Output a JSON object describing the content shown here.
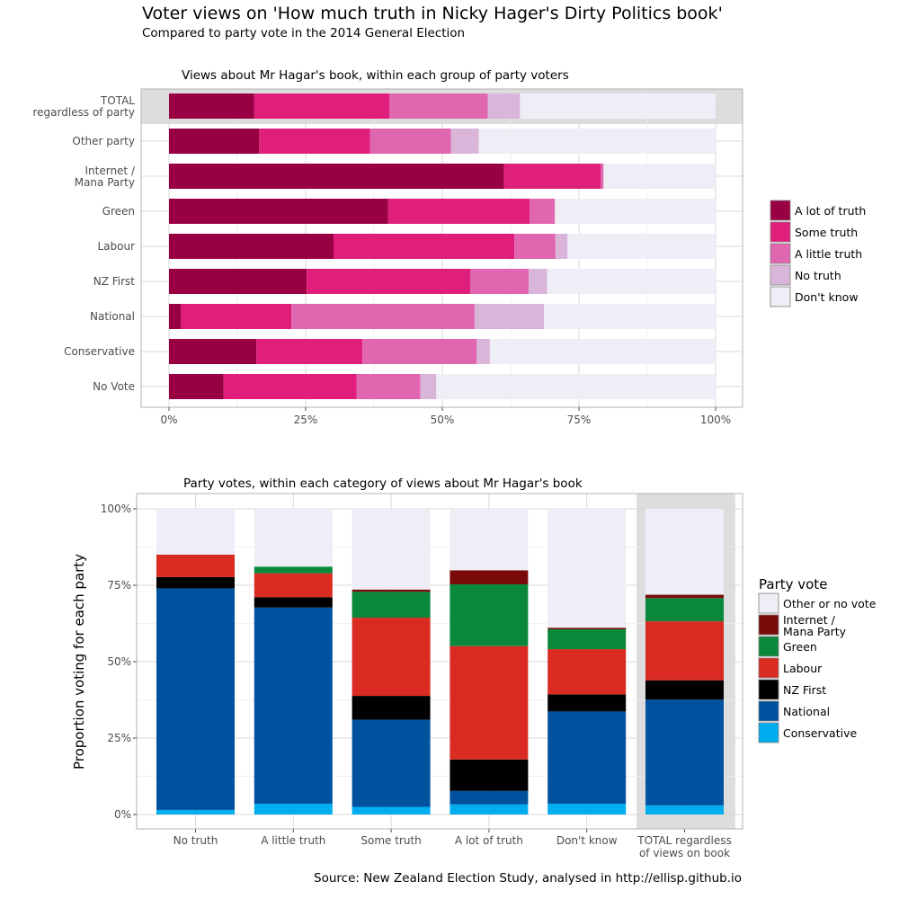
{
  "title": "Voter views on 'How much truth in Nicky Hager's Dirty Politics book'",
  "subtitle": "Compared to party vote in the 2014 General Election",
  "source": "Source: New Zealand Election Study, analysed in http://ellisp.github.io",
  "colors": {
    "a_lot_of_truth": "#990044",
    "some_truth": "#e01f7b",
    "a_little_truth": "#e066b0",
    "no_truth": "#d9b6d9",
    "dont_know": "#efedf5",
    "other_or_no_vote": "#efedf5",
    "internet_mana": "#7a0a0a",
    "green": "#09873a",
    "labour": "#d92b22",
    "nz_first": "#000000",
    "national": "#00529f",
    "conservative": "#00aeef",
    "highlight_band": "#dddddd"
  },
  "chart_data": [
    {
      "type": "bar",
      "orientation": "horizontal",
      "stacked": true,
      "title": "Views about Mr Hagar's book, within each group of party voters",
      "xlabel": "",
      "ylabel": "",
      "xlim": [
        0,
        100
      ],
      "ticks": [
        "0%",
        "25%",
        "50%",
        "75%",
        "100%"
      ],
      "grid": true,
      "legend_position": "right",
      "highlight_category": "TOTAL regardless of party",
      "categories": [
        [
          "TOTAL",
          "regardless of party"
        ],
        [
          "Other party"
        ],
        [
          "Internet /",
          "Mana Party"
        ],
        [
          "Green"
        ],
        [
          "Labour"
        ],
        [
          "NZ First"
        ],
        [
          "National"
        ],
        [
          "Conservative"
        ],
        [
          "No Vote"
        ]
      ],
      "series": [
        {
          "name": "A lot of truth",
          "color_key": "a_lot_of_truth",
          "values": [
            15.6,
            16.5,
            61.3,
            40.1,
            30.1,
            25.2,
            2.2,
            16.0,
            10.0
          ]
        },
        {
          "name": "Some truth",
          "color_key": "some_truth",
          "values": [
            24.7,
            20.3,
            17.7,
            25.9,
            33.1,
            29.9,
            20.2,
            19.4,
            24.3
          ]
        },
        {
          "name": "A little truth",
          "color_key": "a_little_truth",
          "values": [
            18.0,
            14.8,
            0.5,
            4.6,
            7.5,
            10.7,
            33.5,
            20.9,
            11.7
          ]
        },
        {
          "name": "No truth",
          "color_key": "no_truth",
          "values": [
            5.9,
            5.1,
            0.0,
            0.0,
            2.2,
            3.4,
            12.7,
            2.4,
            2.9
          ]
        },
        {
          "name": "Don't know",
          "color_key": "dont_know",
          "values": [
            35.8,
            43.3,
            20.5,
            29.4,
            27.1,
            30.8,
            31.4,
            41.3,
            51.1
          ]
        }
      ]
    },
    {
      "type": "bar",
      "orientation": "vertical",
      "stacked": true,
      "title": "Party votes, within each category of views about Mr Hagar's book",
      "xlabel": "",
      "ylabel": "Proportion voting for each party",
      "ylim": [
        0,
        100
      ],
      "ticks": [
        "0%",
        "25%",
        "50%",
        "75%",
        "100%"
      ],
      "grid": true,
      "legend_title": "Party vote",
      "legend_position": "right",
      "highlight_category": "TOTAL regardless of views on book",
      "categories": [
        [
          "No truth"
        ],
        [
          "A little truth"
        ],
        [
          "Some truth"
        ],
        [
          "A lot of truth"
        ],
        [
          "Don't know"
        ],
        [
          "TOTAL regardless",
          "of views on book"
        ]
      ],
      "series": [
        {
          "name": "Conservative",
          "color_key": "conservative",
          "values": [
            1.5,
            3.5,
            2.5,
            3.3,
            3.5,
            3.0
          ]
        },
        {
          "name": "National",
          "color_key": "national",
          "values": [
            72.5,
            64.2,
            28.5,
            4.4,
            30.2,
            34.6
          ]
        },
        {
          "name": "NZ First",
          "color_key": "nz_first",
          "values": [
            3.7,
            3.4,
            7.8,
            10.3,
            5.6,
            6.3
          ]
        },
        {
          "name": "Labour",
          "color_key": "labour",
          "values": [
            7.3,
            7.8,
            25.6,
            37.1,
            14.8,
            19.3
          ]
        },
        {
          "name": "Green",
          "color_key": "green",
          "values": [
            0.0,
            2.2,
            8.5,
            20.2,
            6.5,
            7.6
          ]
        },
        {
          "name": "Internet / Mana Party",
          "label_lines": [
            "Internet /",
            "Mana Party"
          ],
          "color_key": "internet_mana",
          "values": [
            0.0,
            0.0,
            0.7,
            4.6,
            0.5,
            1.1
          ]
        },
        {
          "name": "Other or no vote",
          "color_key": "other_or_no_vote",
          "values": [
            15.0,
            18.9,
            26.4,
            20.1,
            38.9,
            28.1
          ]
        }
      ]
    }
  ]
}
